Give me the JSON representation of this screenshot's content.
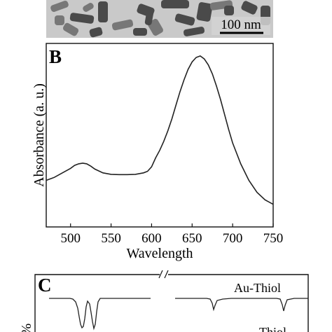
{
  "panels": {
    "a": {
      "scale_bar_label": "100 nm"
    },
    "b": {
      "letter": "B"
    },
    "c": {
      "letter": "C",
      "curve_labels": [
        "Au-Thiol",
        "Thiol"
      ],
      "ylabel_fragment": "%"
    }
  },
  "chart_data": {
    "type": "line",
    "title": "",
    "xlabel": "Wavelength",
    "ylabel": "Absorbance (a. u.)",
    "xlim": [
      470,
      750
    ],
    "xticks": [
      500,
      550,
      600,
      650,
      700,
      750
    ],
    "y_ticks_shown": false,
    "series": [
      {
        "x": [
          470,
          480,
          490,
          500,
          505,
          510,
          515,
          520,
          525,
          530,
          540,
          550,
          560,
          570,
          580,
          590,
          595,
          600,
          605,
          610,
          615,
          620,
          625,
          630,
          635,
          640,
          645,
          650,
          655,
          660,
          665,
          670,
          675,
          680,
          685,
          690,
          695,
          700,
          710,
          720,
          730,
          740,
          750
        ],
        "y": [
          0.18,
          0.2,
          0.23,
          0.26,
          0.28,
          0.29,
          0.295,
          0.29,
          0.275,
          0.255,
          0.23,
          0.22,
          0.218,
          0.218,
          0.22,
          0.23,
          0.24,
          0.27,
          0.33,
          0.38,
          0.44,
          0.51,
          0.59,
          0.68,
          0.77,
          0.85,
          0.92,
          0.97,
          1.0,
          1.01,
          0.99,
          0.95,
          0.89,
          0.81,
          0.72,
          0.62,
          0.52,
          0.43,
          0.29,
          0.18,
          0.1,
          0.05,
          0.02
        ]
      }
    ]
  },
  "colors": {
    "curve": "#222222",
    "tem_background": "#c8c8c8",
    "particle_dark": "#4a4a4a",
    "particle_mid": "#777777"
  }
}
